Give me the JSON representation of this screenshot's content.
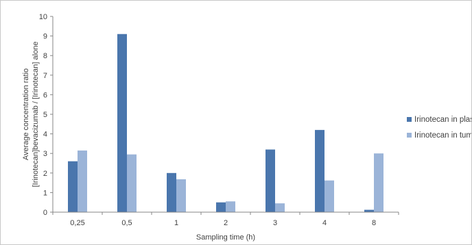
{
  "chart_data": {
    "type": "bar",
    "categories": [
      "0,25",
      "0,5",
      "1",
      "2",
      "3",
      "4",
      "8"
    ],
    "series": [
      {
        "name": "Irinotecan in plasma",
        "values": [
          2.6,
          9.1,
          2.0,
          0.5,
          3.2,
          4.2,
          0.12
        ],
        "color": "#4a76ad"
      },
      {
        "name": "Irinotecan in tumor",
        "values": [
          3.15,
          2.95,
          1.68,
          0.55,
          0.45,
          1.62,
          3.0
        ],
        "color": "#9bb4d8"
      }
    ],
    "title": "",
    "xlabel": "Sampling time (h)",
    "ylabel_lines": [
      "Average concentration ratio",
      "[Irinotecan]bevacizumab / [Irinotecan] alone"
    ],
    "ylim": [
      0,
      10
    ],
    "yticks": [
      "0",
      "1",
      "2",
      "3",
      "4",
      "5",
      "6",
      "7",
      "8",
      "9",
      "10"
    ],
    "grid": false,
    "legend_position": "right"
  }
}
